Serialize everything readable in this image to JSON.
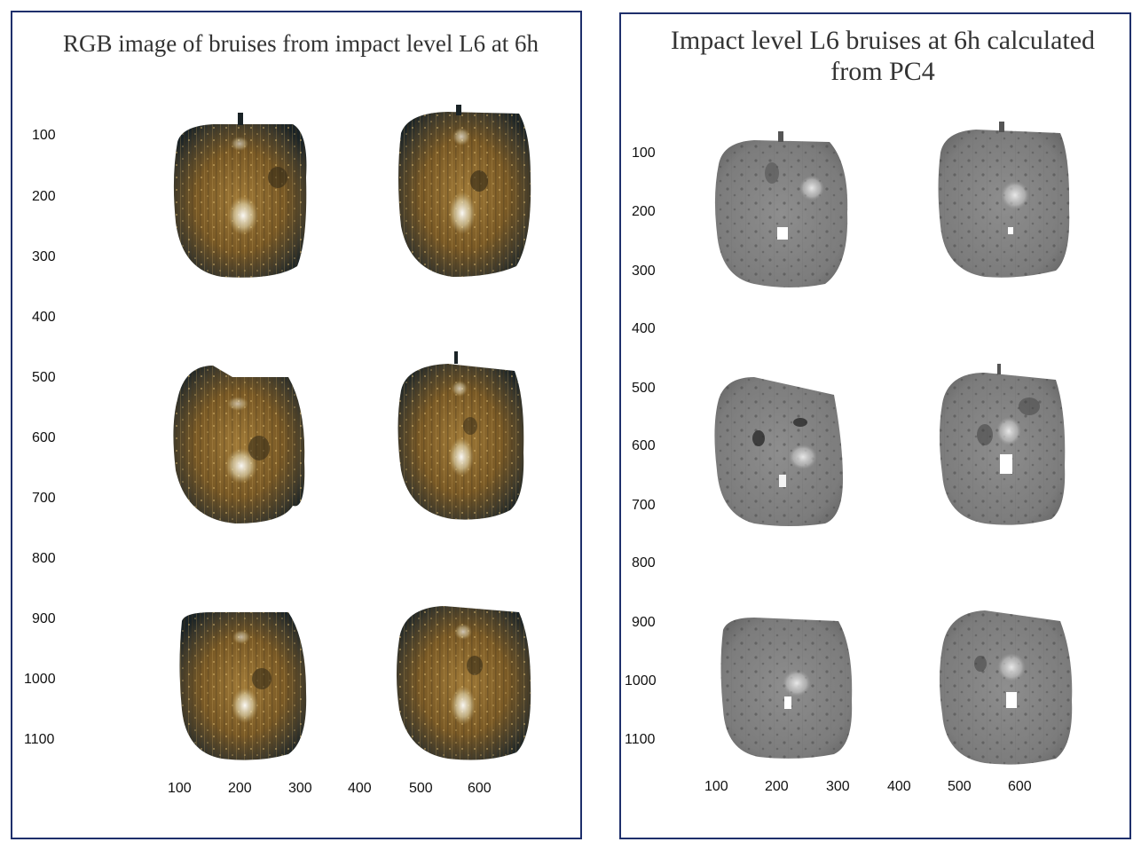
{
  "colors": {
    "frame": "#1e2f6b",
    "rgb_apple_center": "#8b6a2e",
    "rgb_apple_edge": "#1d2427",
    "gray_apple": "#8a8a8a"
  },
  "left_panel": {
    "title": "RGB image of bruises from impact level L6 at 6h",
    "y_ticks": [
      "100",
      "200",
      "300",
      "400",
      "500",
      "600",
      "700",
      "800",
      "900",
      "1000",
      "1100"
    ],
    "x_ticks": [
      "100",
      "200",
      "300",
      "400",
      "500",
      "600"
    ]
  },
  "right_panel": {
    "title": "Impact level L6 bruises at 6h calculated from PC4",
    "y_ticks": [
      "100",
      "200",
      "300",
      "400",
      "500",
      "600",
      "700",
      "800",
      "900",
      "1000",
      "1100"
    ],
    "x_ticks": [
      "100",
      "200",
      "300",
      "400",
      "500",
      "600"
    ]
  }
}
